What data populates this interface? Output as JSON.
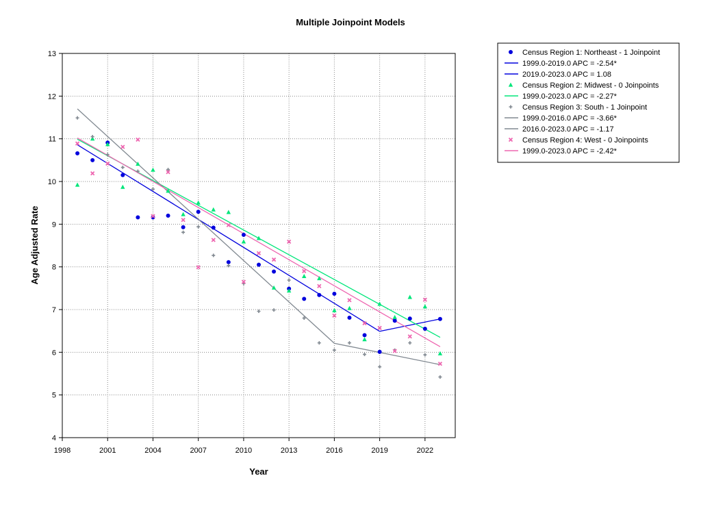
{
  "chart_data": {
    "type": "scatter",
    "title": "Multiple Joinpoint Models",
    "xlabel": "Year",
    "ylabel": "Age Adjusted Rate",
    "xlim": [
      1998,
      2024
    ],
    "ylim": [
      4,
      13
    ],
    "xticks": [
      1998,
      2001,
      2004,
      2007,
      2010,
      2013,
      2016,
      2019,
      2022
    ],
    "yticks": [
      4,
      5,
      6,
      7,
      8,
      9,
      10,
      11,
      12,
      13
    ],
    "grid": true,
    "legend_position": "outside-top-right",
    "series": [
      {
        "name": "Census Region 1: Northeast - 1 Joinpoint",
        "marker": "circle",
        "color": "#0000dd",
        "x": [
          1999,
          2000,
          2001,
          2002,
          2003,
          2004,
          2005,
          2006,
          2007,
          2008,
          2009,
          2010,
          2011,
          2012,
          2013,
          2014,
          2015,
          2016,
          2017,
          2018,
          2019,
          2020,
          2021,
          2022,
          2023
        ],
        "y": [
          10.66,
          10.5,
          10.91,
          10.15,
          9.16,
          9.16,
          9.2,
          8.93,
          9.29,
          8.92,
          8.11,
          8.75,
          8.05,
          7.89,
          7.49,
          7.25,
          7.34,
          7.37,
          6.81,
          6.4,
          6.01,
          6.74,
          6.79,
          6.55,
          6.78
        ],
        "fit": [
          {
            "label": "1999.0-2019.0 APC  =  -2.54*",
            "x": [
              1999,
              2019
            ],
            "y": [
              10.86,
              6.49
            ]
          },
          {
            "label": "2019.0-2023.0 APC  =  1.08",
            "x": [
              2019,
              2023
            ],
            "y": [
              6.49,
              6.78
            ]
          }
        ]
      },
      {
        "name": "Census Region 2: Midwest - 0 Joinpoints",
        "marker": "triangle",
        "color": "#00e67a",
        "x": [
          1999,
          2000,
          2001,
          2002,
          2003,
          2004,
          2005,
          2006,
          2007,
          2008,
          2009,
          2010,
          2011,
          2012,
          2013,
          2014,
          2015,
          2016,
          2017,
          2018,
          2019,
          2020,
          2021,
          2022,
          2023
        ],
        "y": [
          9.92,
          11.0,
          10.87,
          9.87,
          10.41,
          10.27,
          9.78,
          9.23,
          9.5,
          9.34,
          9.28,
          8.59,
          8.67,
          7.51,
          7.44,
          7.78,
          7.73,
          6.98,
          7.03,
          6.3,
          7.13,
          6.82,
          7.29,
          7.07,
          5.97
        ],
        "fit": [
          {
            "label": "1999.0-2023.0 APC  =  -2.27*",
            "x": [
              1999,
              2023
            ],
            "y": [
              10.99,
              6.35
            ]
          }
        ]
      },
      {
        "name": "Census Region 3: South - 1 Joinpoint",
        "marker": "plus",
        "color": "#808890",
        "x": [
          1999,
          2000,
          2001,
          2002,
          2003,
          2004,
          2005,
          2006,
          2007,
          2008,
          2009,
          2010,
          2011,
          2012,
          2013,
          2014,
          2015,
          2016,
          2017,
          2018,
          2019,
          2020,
          2021,
          2022,
          2023
        ],
        "y": [
          11.49,
          11.05,
          10.63,
          10.33,
          10.24,
          9.82,
          10.28,
          8.81,
          8.94,
          8.27,
          8.03,
          7.61,
          6.96,
          6.99,
          7.69,
          6.8,
          6.22,
          6.05,
          6.22,
          5.95,
          5.66,
          6.05,
          6.22,
          5.94,
          5.42
        ],
        "fit": [
          {
            "label": "1999.0-2016.0 APC  =  -3.66*",
            "x": [
              1999,
              2016
            ],
            "y": [
              11.7,
              6.21
            ]
          },
          {
            "label": "2016.0-2023.0 APC  =  -1.17",
            "x": [
              2016,
              2023
            ],
            "y": [
              6.21,
              5.71
            ]
          }
        ]
      },
      {
        "name": "Census Region 4: West - 0 Joinpoints",
        "marker": "x",
        "color": "#ee66b0",
        "x": [
          1999,
          2000,
          2001,
          2002,
          2003,
          2004,
          2005,
          2006,
          2007,
          2008,
          2009,
          2010,
          2011,
          2012,
          2013,
          2014,
          2015,
          2016,
          2017,
          2018,
          2019,
          2020,
          2021,
          2022,
          2023
        ],
        "y": [
          10.89,
          10.19,
          10.42,
          10.81,
          10.98,
          9.19,
          10.22,
          9.1,
          7.99,
          8.63,
          8.98,
          7.65,
          8.32,
          8.17,
          8.59,
          7.9,
          7.55,
          6.86,
          7.22,
          6.68,
          6.57,
          6.03,
          6.37,
          7.23,
          5.73
        ],
        "fit": [
          {
            "label": "1999.0-2023.0 APC  =  -2.42*",
            "x": [
              1999,
              2023
            ],
            "y": [
              11.02,
              6.13
            ]
          }
        ]
      }
    ]
  }
}
